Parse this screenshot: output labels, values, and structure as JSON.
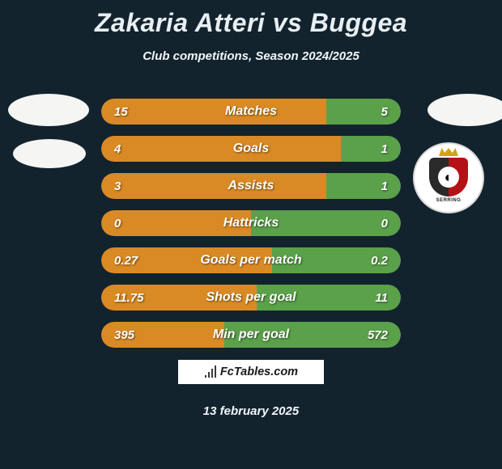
{
  "title": "Zakaria Atteri vs Buggea",
  "subtitle": "Club competitions, Season 2024/2025",
  "date": "13 february 2025",
  "footer_brand": "FcTables.com",
  "colors": {
    "left": "#d98a24",
    "right": "#5aa14a",
    "bar_bg": "#203a4a",
    "page_bg": "#12232e"
  },
  "logo_right": {
    "text": "SERRING"
  },
  "stats": [
    {
      "label": "Matches",
      "left_text": "15",
      "right_text": "5",
      "left_pct": 75,
      "right_pct": 25
    },
    {
      "label": "Goals",
      "left_text": "4",
      "right_text": "1",
      "left_pct": 80,
      "right_pct": 20
    },
    {
      "label": "Assists",
      "left_text": "3",
      "right_text": "1",
      "left_pct": 75,
      "right_pct": 25
    },
    {
      "label": "Hattricks",
      "left_text": "0",
      "right_text": "0",
      "left_pct": 50,
      "right_pct": 50
    },
    {
      "label": "Goals per match",
      "left_text": "0.27",
      "right_text": "0.2",
      "left_pct": 57,
      "right_pct": 43
    },
    {
      "label": "Shots per goal",
      "left_text": "11.75",
      "right_text": "11",
      "left_pct": 52,
      "right_pct": 48
    },
    {
      "label": "Min per goal",
      "left_text": "395",
      "right_text": "572",
      "left_pct": 41,
      "right_pct": 59
    }
  ]
}
